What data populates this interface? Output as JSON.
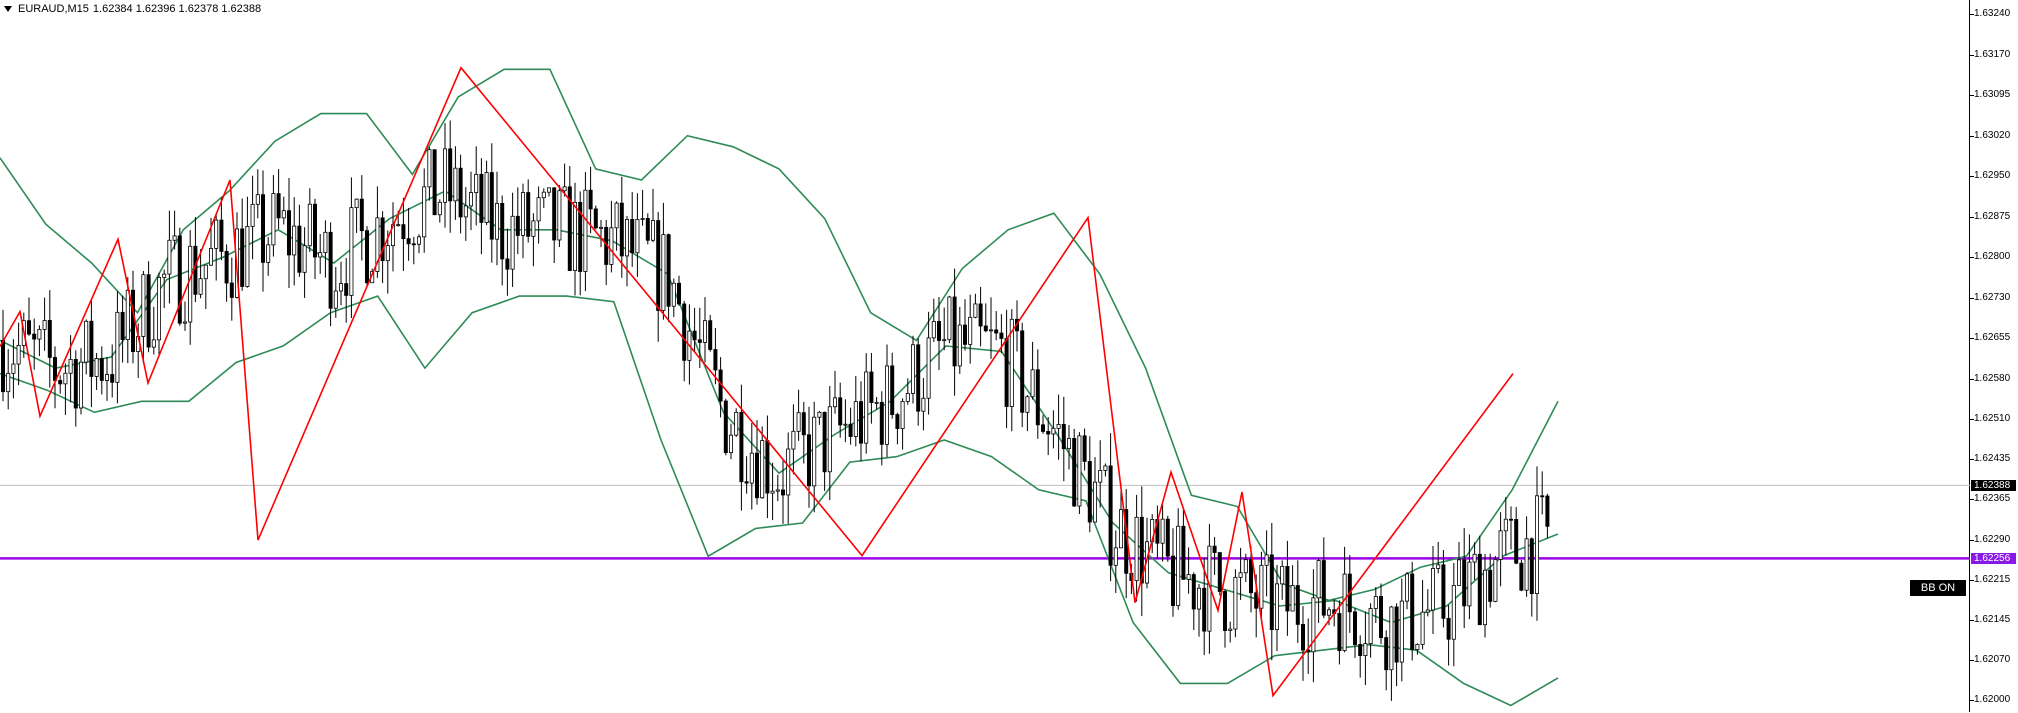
{
  "header": {
    "symbol": "EURAUD,M15",
    "ohlc": "1.62384 1.62396 1.62378 1.62388"
  },
  "price_axis": {
    "labels": [
      "1.63240",
      "1.63170",
      "1.63095",
      "1.63020",
      "1.62950",
      "1.62875",
      "1.62800",
      "1.62730",
      "1.62655",
      "1.62580",
      "1.62510",
      "1.62435",
      "1.62365",
      "1.62290",
      "1.62215",
      "1.62145",
      "1.62070",
      "1.62000"
    ]
  },
  "current_price_tag": "1.62388",
  "horizontal_level_tag": "1.62256",
  "badge": "BB ON",
  "colors": {
    "zigzag": "#ff0000",
    "bollinger": "#2e8b57",
    "horizontal_line": "#9b00e8",
    "bid_line": "#c0c0c0",
    "candles": "#000000"
  },
  "chart_data": {
    "type": "line",
    "instrument": "EURAUD",
    "timeframe": "M15",
    "price_range": [
      1.62,
      1.6324
    ],
    "current_price": 1.62388,
    "horizontal_level": 1.62256,
    "zigzag_indicator": [
      1.62639,
      1.62702,
      1.62513,
      1.62833,
      1.62573,
      1.6294,
      1.62289,
      1.63143,
      1.62261,
      1.62872,
      1.62176,
      1.62412,
      1.62162,
      1.62376,
      1.62008,
      1.6259
    ],
    "bollinger_upper": [
      1.6298,
      1.6286,
      1.6279,
      1.627,
      1.6285,
      1.6292,
      1.6301,
      1.6306,
      1.6306,
      1.6295,
      1.6309,
      1.6314,
      1.6314,
      1.6296,
      1.6294,
      1.6302,
      1.63,
      1.6296,
      1.6287,
      1.627,
      1.6265,
      1.6278,
      1.6285,
      1.6288,
      1.6277,
      1.626,
      1.6237,
      1.6235,
      1.6221,
      1.6218,
      1.622,
      1.6224,
      1.6226,
      1.6238,
      1.6254
    ],
    "bollinger_middle": [
      1.6265,
      1.626,
      1.6262,
      1.6276,
      1.628,
      1.6285,
      1.6279,
      1.6287,
      1.6292,
      1.6285,
      1.6285,
      1.6283,
      1.6277,
      1.6252,
      1.6241,
      1.6248,
      1.6254,
      1.6264,
      1.6263,
      1.6248,
      1.6232,
      1.6223,
      1.622,
      1.6217,
      1.6218,
      1.6214,
      1.6217,
      1.6226,
      1.623
    ],
    "bollinger_lower": [
      1.6259,
      1.6256,
      1.6252,
      1.6254,
      1.6254,
      1.6261,
      1.6264,
      1.627,
      1.6273,
      1.626,
      1.627,
      1.6273,
      1.6273,
      1.6272,
      1.6247,
      1.6226,
      1.6231,
      1.6232,
      1.6243,
      1.6244,
      1.6247,
      1.6244,
      1.6238,
      1.6236,
      1.6214,
      1.6203,
      1.6203,
      1.6208,
      1.6209,
      1.621,
      1.6209,
      1.6203,
      1.6199,
      1.6204
    ]
  }
}
